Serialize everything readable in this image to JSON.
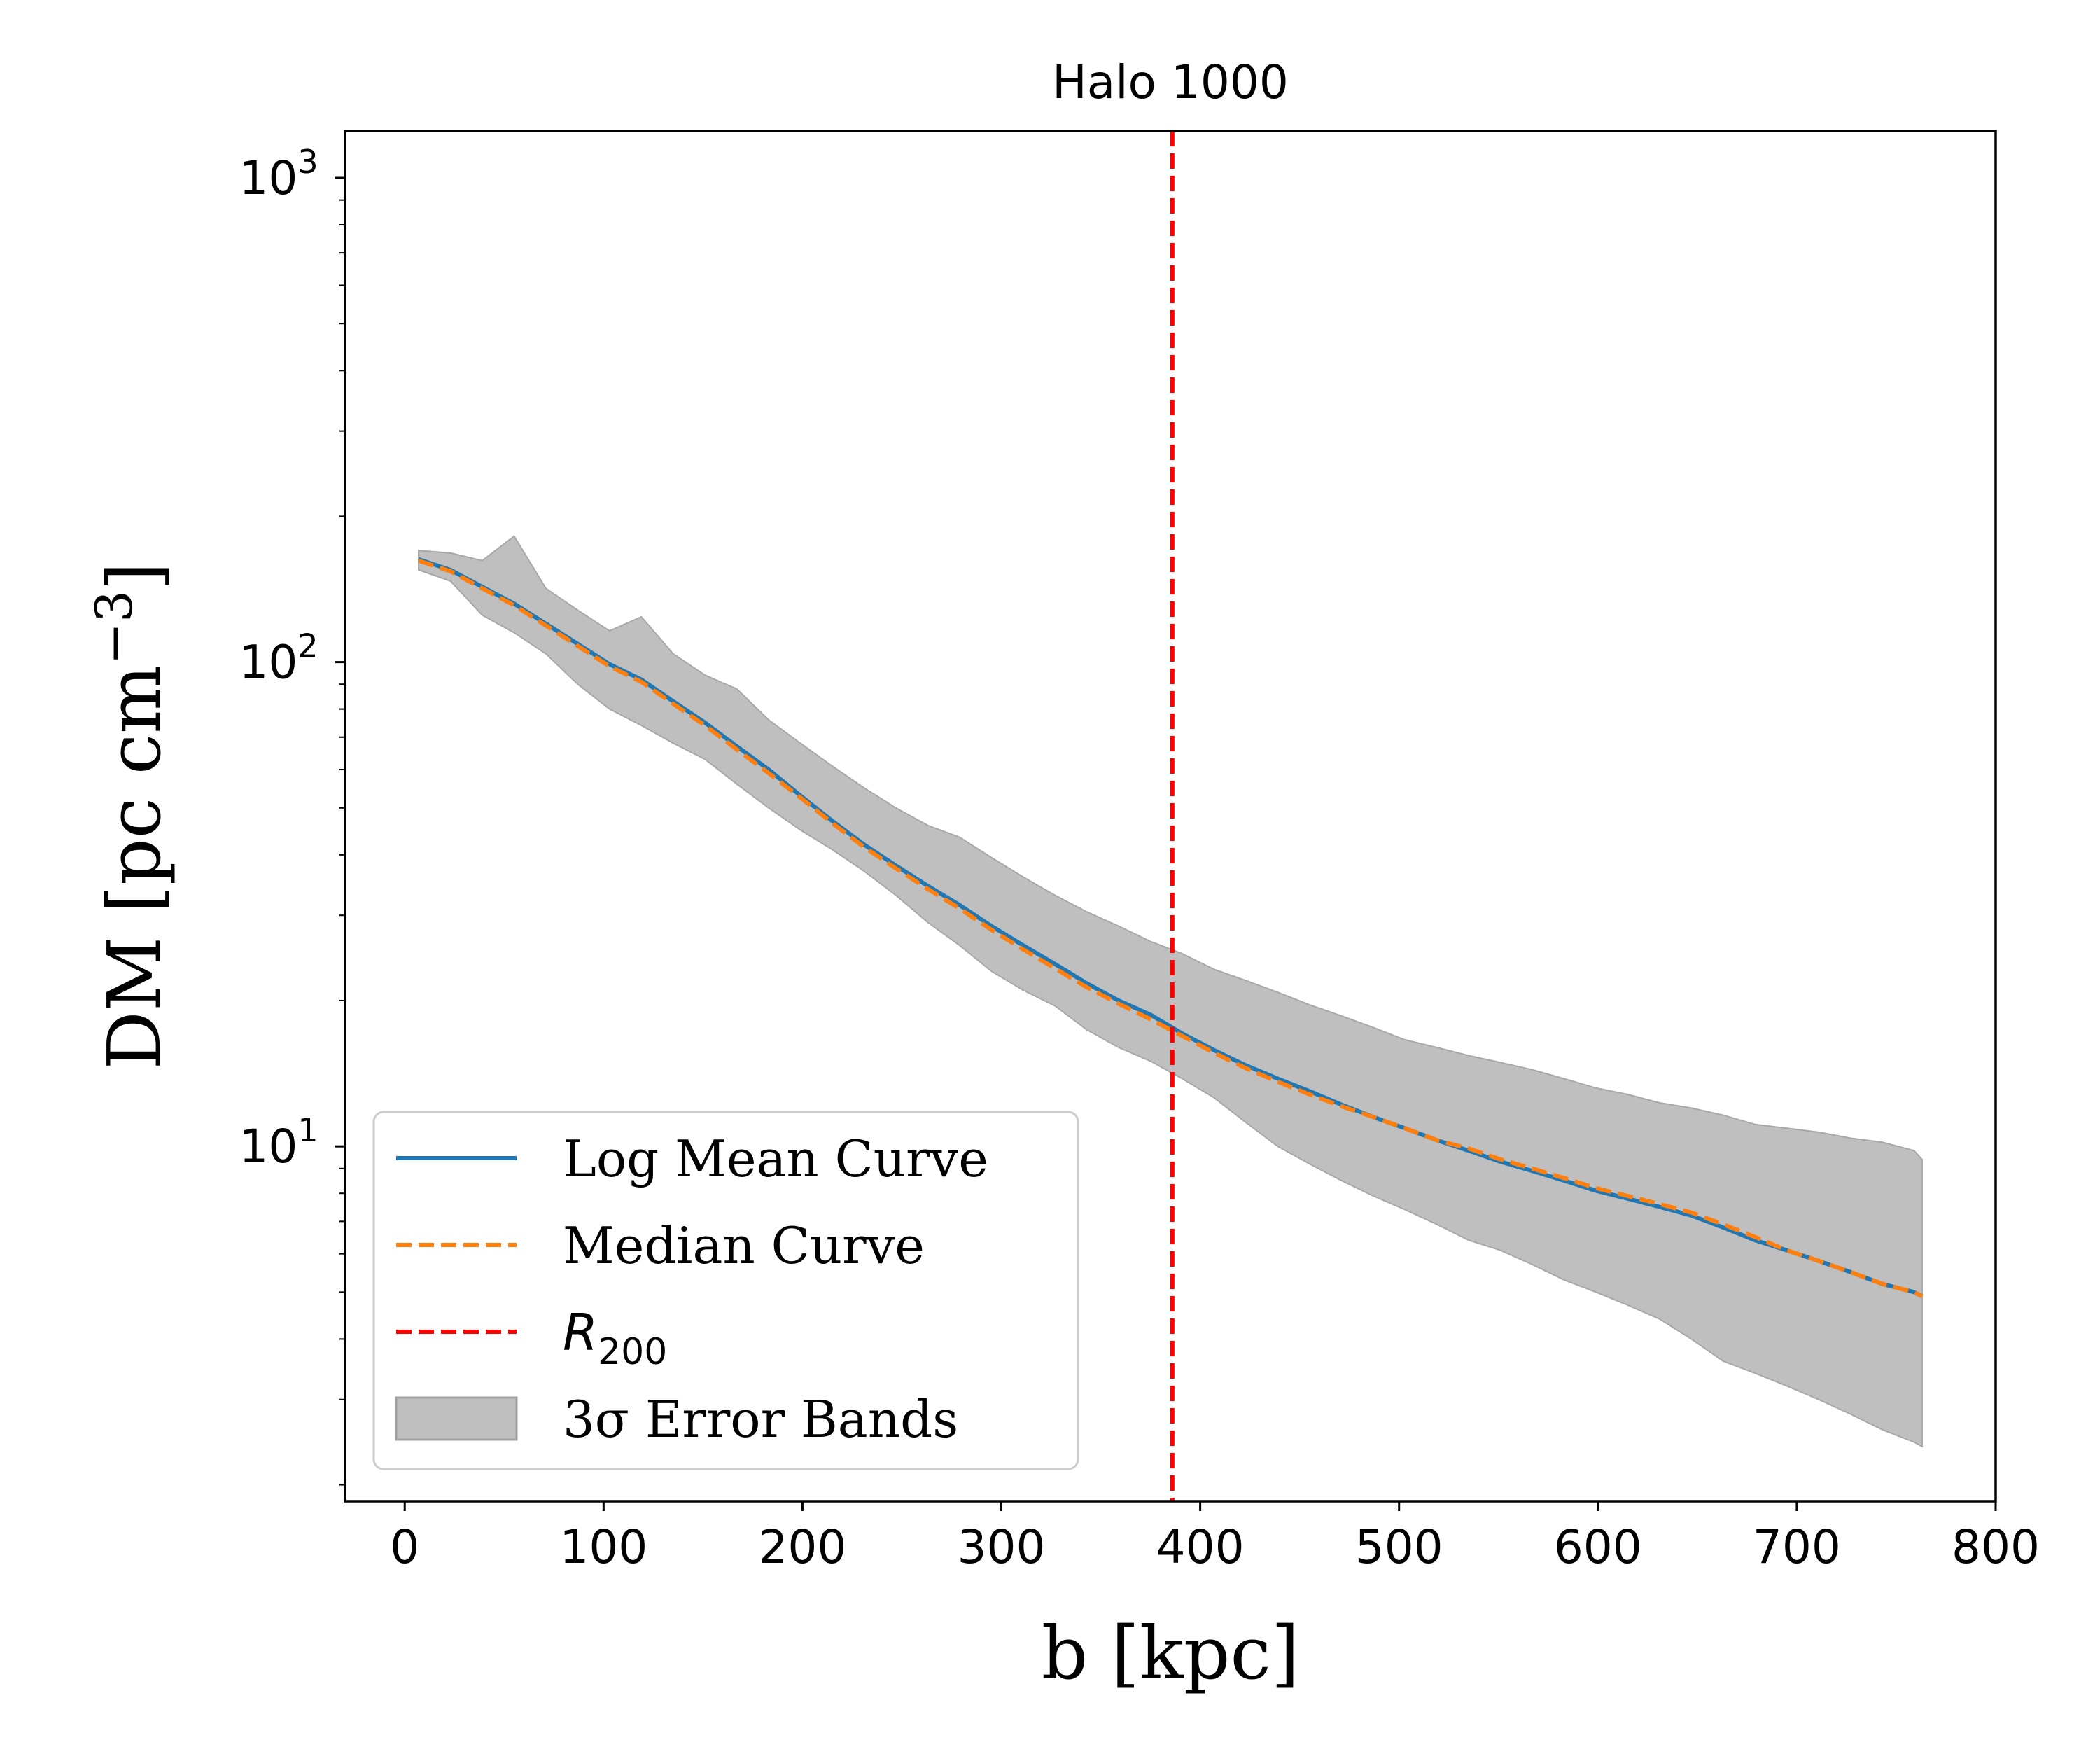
{
  "chart_data": {
    "type": "line",
    "title": "Halo 1000",
    "xlabel": "b [kpc]",
    "ylabel_parts": {
      "main": "DM [pc cm",
      "sup": "−3",
      "end": "]"
    },
    "xlim": [
      -30,
      800
    ],
    "ylim": [
      1.85,
      1250
    ],
    "yscale": "log",
    "x_ticks": [
      0,
      100,
      200,
      300,
      400,
      500,
      600,
      700,
      800
    ],
    "y_ticks": [
      {
        "value": 10,
        "base": "10",
        "exp": "1"
      },
      {
        "value": 100,
        "base": "10",
        "exp": "2"
      },
      {
        "value": 1000,
        "base": "10",
        "exp": "3"
      }
    ],
    "grid": false,
    "legend_position": "lower-left",
    "x": [
      7,
      23,
      39,
      55,
      71,
      87,
      103,
      119,
      135,
      151,
      167,
      183,
      199,
      215,
      231,
      247,
      263,
      279,
      295,
      311,
      327,
      343,
      359,
      375,
      391,
      407,
      423,
      439,
      455,
      471,
      487,
      503,
      519,
      535,
      551,
      567,
      583,
      599,
      615,
      631,
      647,
      663,
      679,
      695,
      711,
      727,
      743,
      759,
      763
    ],
    "series": [
      {
        "name": "Log Mean Curve",
        "style": "solid",
        "color": "#1f77b4",
        "values": [
          163,
          155,
          143,
          132,
          120,
          109,
          99,
          92,
          83,
          75,
          67,
          60,
          53,
          47,
          42,
          38,
          34.5,
          31.5,
          28.5,
          26,
          23.8,
          21.7,
          20,
          18.7,
          17.1,
          15.8,
          14.7,
          13.8,
          13,
          12.2,
          11.5,
          10.9,
          10.3,
          9.8,
          9.3,
          8.9,
          8.5,
          8.1,
          7.8,
          7.5,
          7.2,
          6.8,
          6.4,
          6.1,
          5.8,
          5.5,
          5.2,
          5,
          4.9
        ]
      },
      {
        "name": "Median Curve",
        "style": "dashed",
        "color": "#ff7f0e",
        "values": [
          162,
          154,
          142,
          131,
          119,
          108,
          98,
          91,
          82,
          74,
          66,
          59,
          52.5,
          46.5,
          41.5,
          37.5,
          34,
          31,
          28,
          25.5,
          23.3,
          21.3,
          19.7,
          18.3,
          16.9,
          15.6,
          14.5,
          13.6,
          12.8,
          12.1,
          11.5,
          10.9,
          10.3,
          9.9,
          9.4,
          9,
          8.6,
          8.2,
          7.9,
          7.6,
          7.3,
          6.9,
          6.5,
          6.1,
          5.8,
          5.5,
          5.2,
          5,
          4.9
        ]
      }
    ],
    "error_band": {
      "name": "3σ Error Bands",
      "color": "#bfbfbf",
      "upper": [
        170,
        168,
        162,
        182,
        142,
        128,
        116,
        124,
        104,
        94,
        88,
        76,
        68,
        61,
        55,
        50,
        46,
        43.5,
        39.5,
        36,
        33,
        30.5,
        28.5,
        26.5,
        25,
        23.2,
        22,
        20.8,
        19.6,
        18.6,
        17.6,
        16.6,
        16,
        15.4,
        14.9,
        14.4,
        13.8,
        13.2,
        12.8,
        12.3,
        12,
        11.6,
        11.1,
        10.9,
        10.7,
        10.4,
        10.2,
        9.8,
        9.4
      ],
      "lower": [
        155,
        147,
        125,
        115,
        104,
        90,
        80,
        74,
        68,
        63,
        56,
        50,
        45,
        41,
        37,
        33,
        29,
        26,
        23,
        21,
        19.5,
        17.4,
        16,
        15,
        13.8,
        12.6,
        11.2,
        10,
        9.2,
        8.5,
        7.9,
        7.4,
        6.9,
        6.4,
        6.1,
        5.7,
        5.3,
        5,
        4.7,
        4.4,
        4,
        3.6,
        3.4,
        3.2,
        3,
        2.8,
        2.6,
        2.45,
        2.4
      ]
    },
    "vline": {
      "name": "R200",
      "label_main": "R",
      "label_sub": "200",
      "x": 386,
      "color": "#ff0000",
      "style": "dashed"
    }
  }
}
